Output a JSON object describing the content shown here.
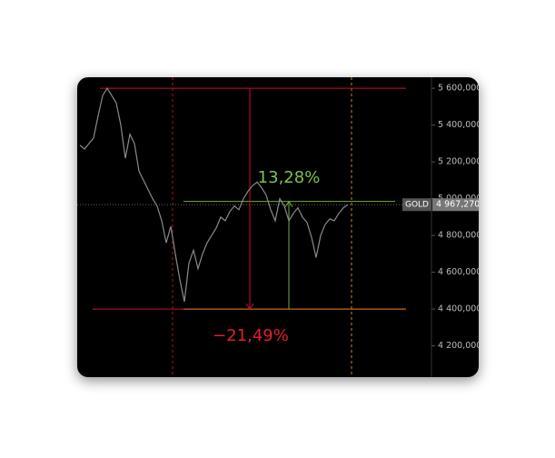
{
  "chart_data": {
    "type": "line",
    "symbol": "GOLD",
    "color": "#8a8a8a",
    "categories": [
      null,
      null,
      null,
      null,
      null,
      null,
      null,
      null,
      null,
      null,
      null,
      null,
      null,
      null,
      null,
      null,
      null,
      null,
      null,
      null,
      null,
      null,
      null,
      null,
      null,
      null,
      null,
      null,
      null,
      null,
      null,
      null,
      null,
      null,
      null,
      null,
      null,
      null,
      null,
      null,
      null,
      null,
      null,
      null,
      null,
      null,
      null,
      null,
      null,
      null,
      null,
      null,
      null,
      null,
      null,
      null,
      null,
      null,
      null,
      null
    ],
    "values": [
      5290000,
      5270000,
      5300000,
      5330000,
      5450000,
      5560000,
      5600000,
      5560000,
      5520000,
      5400000,
      5220000,
      5350000,
      5300000,
      5150000,
      5100000,
      5050000,
      5000000,
      4960000,
      4880000,
      4760000,
      4850000,
      4700000,
      4560000,
      4440000,
      4650000,
      4720000,
      4620000,
      4700000,
      4760000,
      4800000,
      4840000,
      4900000,
      4880000,
      4930000,
      4960000,
      4940000,
      5000000,
      5040000,
      5070000,
      5090000,
      5060000,
      5020000,
      4940000,
      4880000,
      5000000,
      4960000,
      4880000,
      4920000,
      4950000,
      4900000,
      4870000,
      4790000,
      4680000,
      4800000,
      4860000,
      4890000,
      4880000,
      4920000,
      4950000,
      4967270
    ],
    "ylim": [
      4030000,
      5660000
    ],
    "yticks": [
      {
        "value": 4200000,
        "label": "4 200,000"
      },
      {
        "value": 4400000,
        "label": "4 400,000"
      },
      {
        "value": 4600000,
        "label": "4 600,000"
      },
      {
        "value": 4800000,
        "label": "4 800,000"
      },
      {
        "value": 5000000,
        "label": "5 000,000"
      },
      {
        "value": 5200000,
        "label": "5 200,000"
      },
      {
        "value": 5400000,
        "label": "5 400,000"
      },
      {
        "value": 5600000,
        "label": "5 600,000"
      }
    ],
    "last_value": {
      "value": 4967270,
      "label": "4 967,270"
    },
    "levels": [
      {
        "value": 5600000,
        "color": "#c8102e"
      },
      {
        "value": 4400000,
        "color": "#c8102e"
      },
      {
        "value": 4985000,
        "color": "#6fae3a"
      }
    ],
    "annotations": [
      {
        "text": "13,28%",
        "color": "#7fc24a"
      },
      {
        "text": "−21,49%",
        "color": "#e0202a"
      }
    ]
  }
}
